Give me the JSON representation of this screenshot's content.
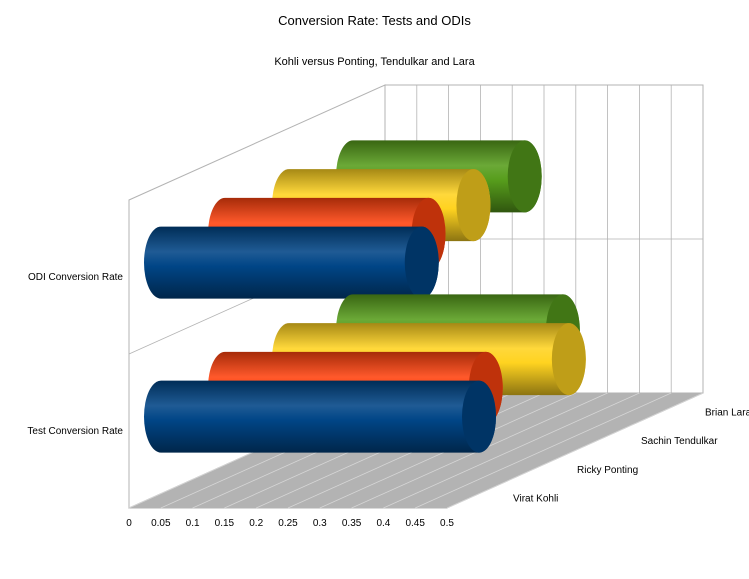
{
  "chart_data": {
    "type": "bar",
    "orientation": "horizontal",
    "three_d": true,
    "shape": "cylinder",
    "title": "Conversion Rate: Tests and ODIs",
    "subtitle": "Kohli versus Ponting, Tendulkar and Lara",
    "categories": [
      "Test Conversion Rate",
      "ODI Conversion Rate"
    ],
    "depth_labels": [
      "Virat Kohli",
      "Ricky Ponting",
      "Sachin Tendulkar",
      "Brian Lara"
    ],
    "series": [
      {
        "name": "Virat Kohli",
        "color": "#004586",
        "values": [
          0.5,
          0.41
        ]
      },
      {
        "name": "Ricky Ponting",
        "color": "#ff420e",
        "values": [
          0.41,
          0.32
        ]
      },
      {
        "name": "Sachin Tendulkar",
        "color": "#ffd320",
        "values": [
          0.44,
          0.29
        ]
      },
      {
        "name": "Brian Lara",
        "color": "#579d1c",
        "values": [
          0.33,
          0.27
        ]
      }
    ],
    "xlim": [
      0,
      0.5
    ],
    "x_ticks": [
      "0",
      "0.05",
      "0.1",
      "0.15",
      "0.2",
      "0.25",
      "0.3",
      "0.35",
      "0.4",
      "0.45",
      "0.5"
    ],
    "grid": true,
    "legend": "none"
  }
}
